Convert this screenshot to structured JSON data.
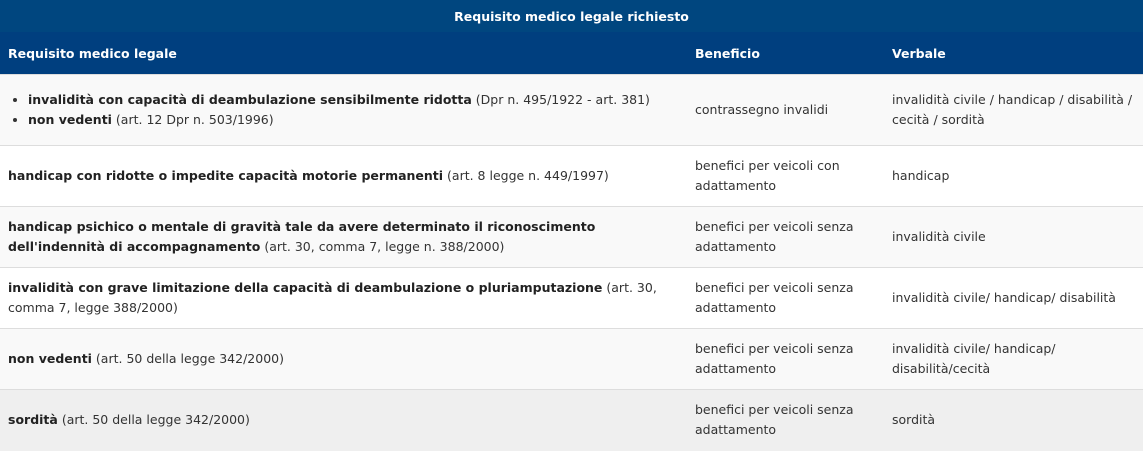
{
  "table": {
    "caption": "Requisito medico legale richiesto",
    "headers": [
      "Requisito medico legale",
      "Beneficio",
      "Verbale"
    ],
    "rows": [
      {
        "items": [
          {
            "bold": "invalidità con capacità di deambulazione sensibilmente ridotta",
            "ref": " (Dpr n. 495/1922 - art. 381)"
          },
          {
            "bold": "non vedenti",
            "ref": " (art. 12 Dpr n. 503/1996)"
          }
        ],
        "beneficio": "contrassegno invalidi",
        "verbale": "invalidità civile / handicap / disabilità / cecità / sordità"
      },
      {
        "bold": "handicap con ridotte o impedite capacità motorie permanenti",
        "ref": " (art. 8 legge n. 449/1997)",
        "beneficio": "benefici per veicoli con adattamento",
        "verbale": "handicap"
      },
      {
        "bold": "handicap psichico o mentale di gravità tale da avere determinato il riconoscimento dell'indennità di accompagnamento",
        "ref": " (art. 30, comma 7, legge n. 388/2000)",
        "beneficio": "benefici per veicoli senza adattamento",
        "verbale": "invalidità civile"
      },
      {
        "bold": "invalidità con grave limitazione della capacità di deambulazione o pluriamputazione",
        "ref": " (art. 30, comma 7, legge 388/2000)",
        "beneficio": "benefici per veicoli senza adattamento",
        "verbale": "invalidità civile/ handicap/ disabilità"
      },
      {
        "bold": "non vedenti",
        "ref": " (art. 50 della legge 342/2000)",
        "beneficio": "benefici per veicoli senza adattamento",
        "verbale": "invalidità civile/ handicap/ disabilità/cecità"
      },
      {
        "bold": "sordità",
        "ref": " (art. 50 della legge 342/2000)",
        "beneficio": "benefici per veicoli senza adattamento",
        "verbale": "sordità"
      }
    ]
  },
  "colors": {
    "caption_bg": "#00467f",
    "header_bg": "#003f7f",
    "row_alt": "#f9f9f9",
    "row_hover": "#efefef"
  }
}
